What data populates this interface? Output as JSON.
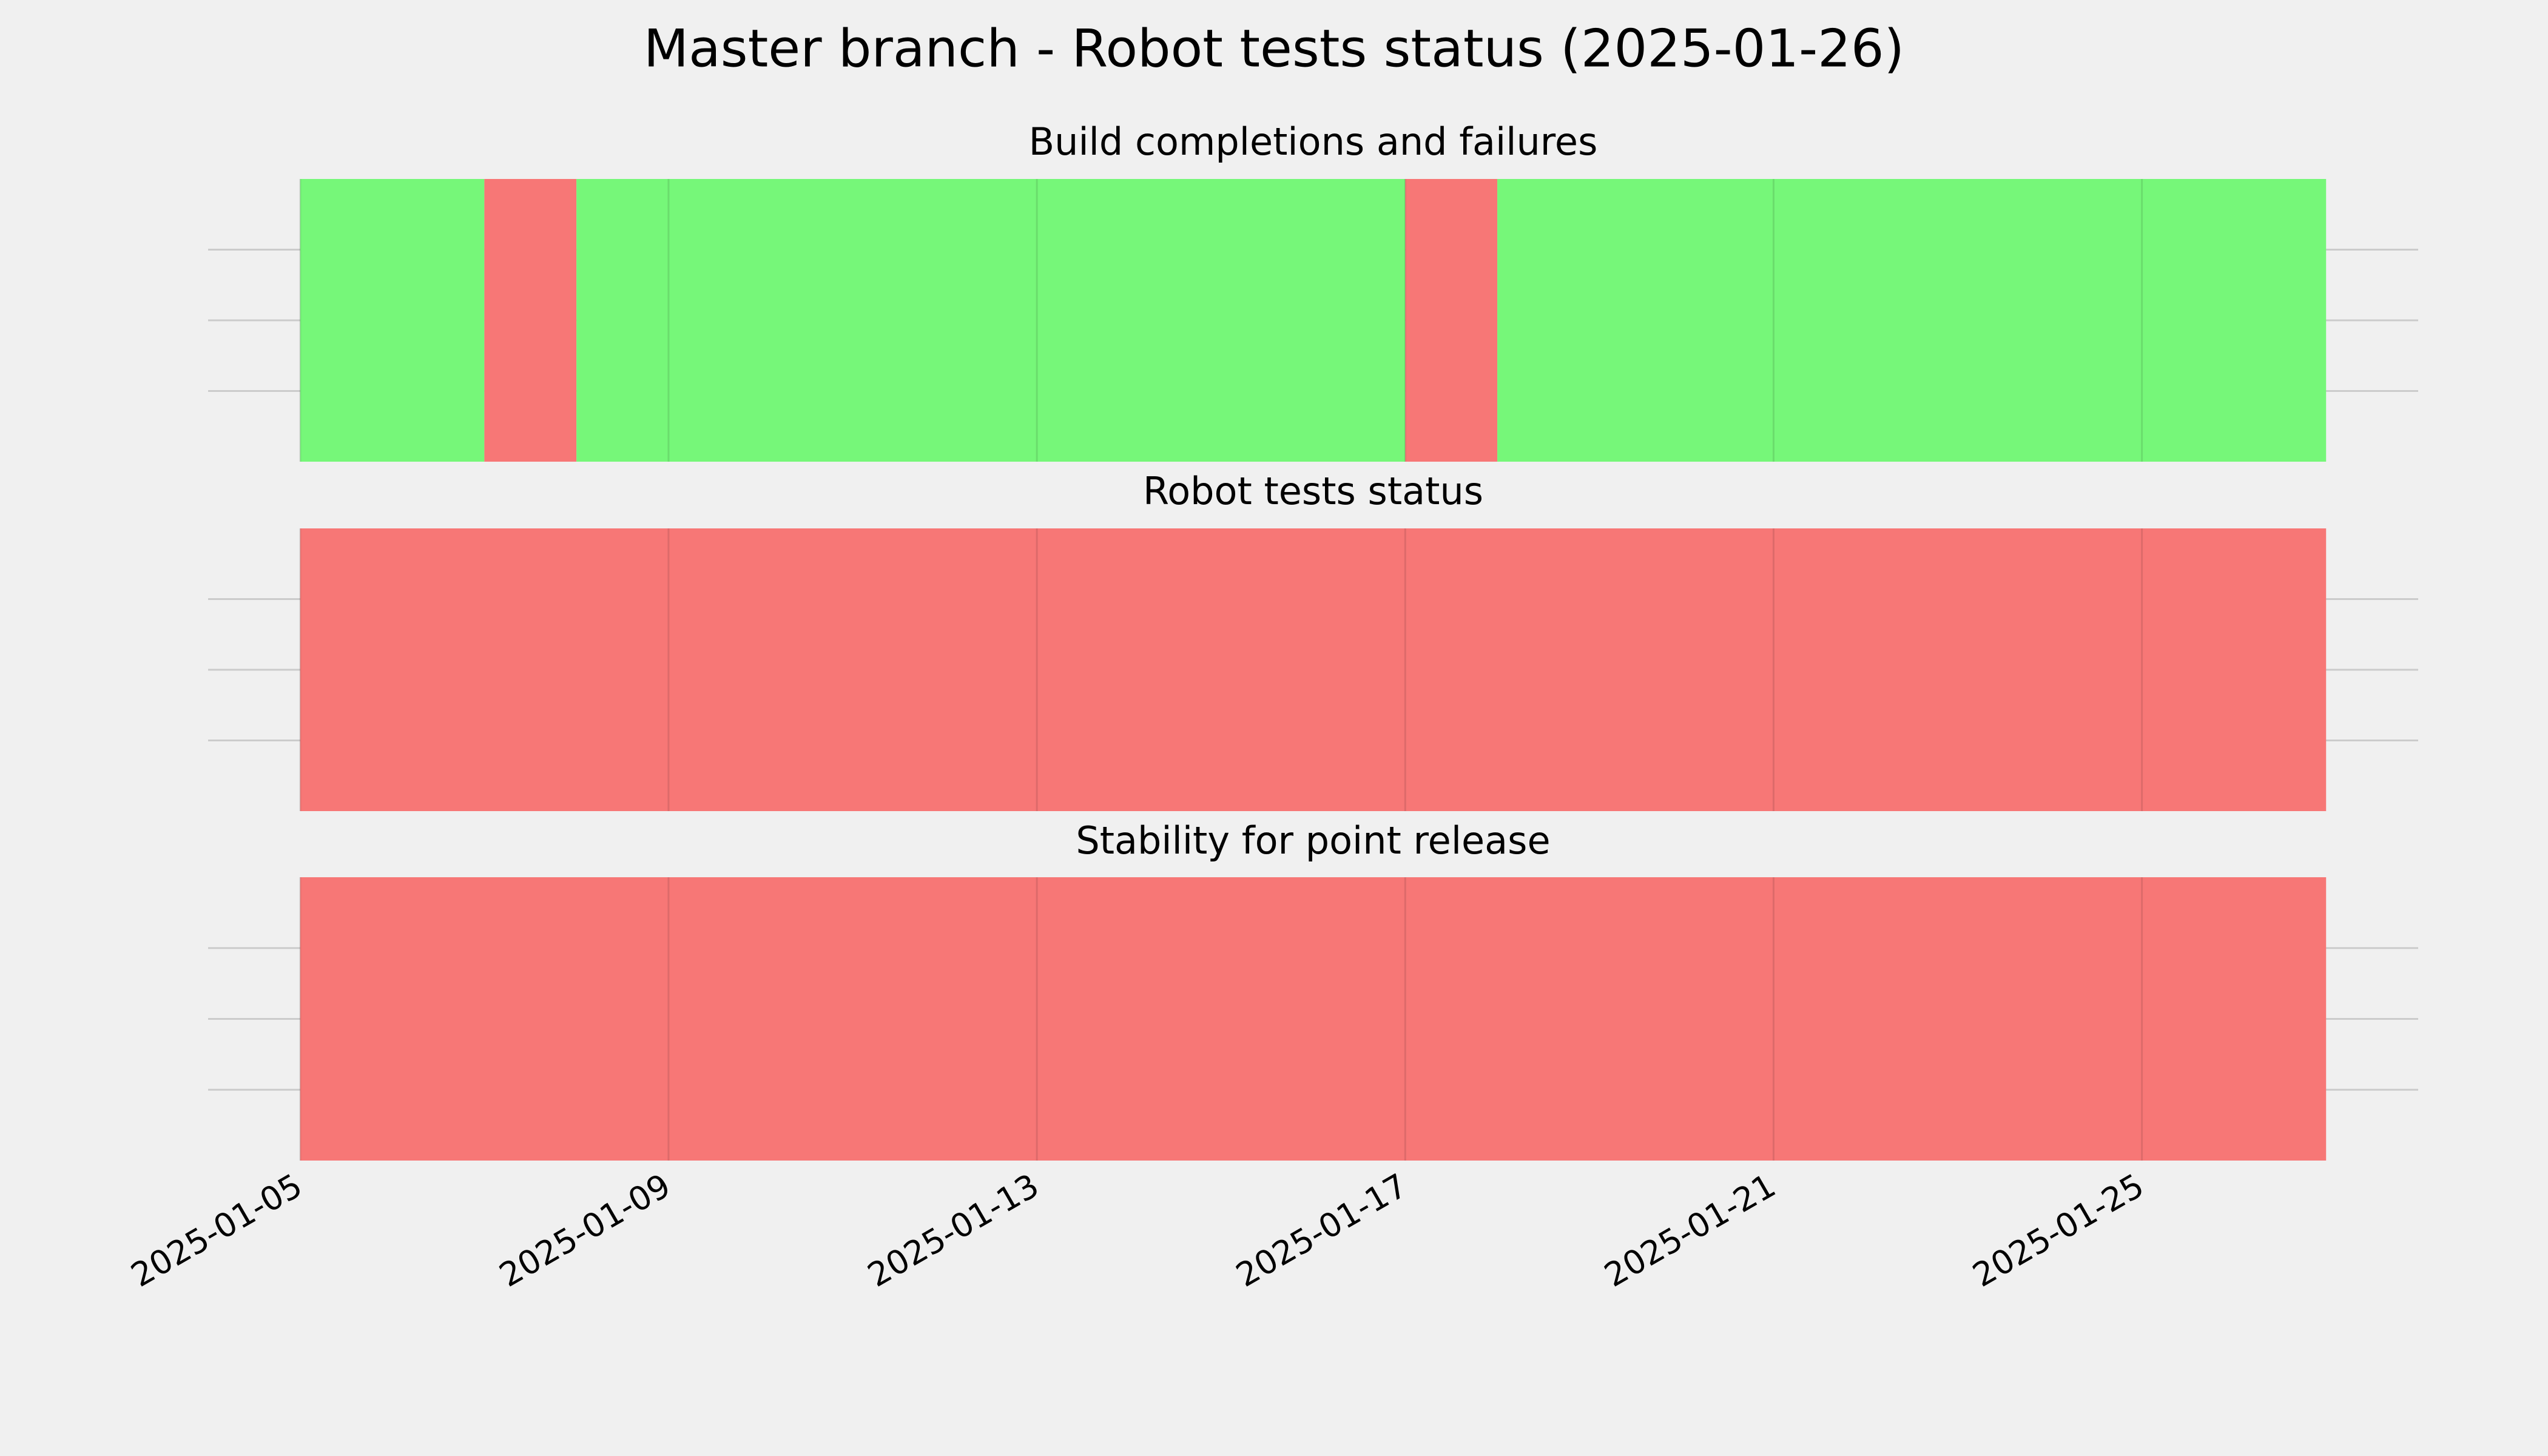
{
  "title": "Master branch - Robot tests status (2025-01-26)",
  "chart_data": [
    {
      "type": "timeline",
      "title": "Build completions and failures",
      "segments": [
        {
          "start": "2025-01-05",
          "end": "2025-01-07",
          "color": "#76f779"
        },
        {
          "start": "2025-01-07",
          "end": "2025-01-08",
          "color": "#f77776"
        },
        {
          "start": "2025-01-08",
          "end": "2025-01-17",
          "color": "#76f779"
        },
        {
          "start": "2025-01-17",
          "end": "2025-01-18",
          "color": "#f77776"
        },
        {
          "start": "2025-01-18",
          "end": "2025-01-27",
          "color": "#76f779"
        }
      ],
      "xlim": [
        "2025-01-04",
        "2025-01-28"
      ],
      "xticks": [
        "2025-01-05",
        "2025-01-09",
        "2025-01-13",
        "2025-01-17",
        "2025-01-21",
        "2025-01-25"
      ],
      "grid": true
    },
    {
      "type": "timeline",
      "title": "Robot tests status",
      "segments": [
        {
          "start": "2025-01-05",
          "end": "2025-01-27",
          "color": "#f77776"
        }
      ],
      "xlim": [
        "2025-01-04",
        "2025-01-28"
      ],
      "xticks": [
        "2025-01-05",
        "2025-01-09",
        "2025-01-13",
        "2025-01-17",
        "2025-01-21",
        "2025-01-25"
      ],
      "grid": true
    },
    {
      "type": "timeline",
      "title": "Stability for point release",
      "segments": [
        {
          "start": "2025-01-05",
          "end": "2025-01-27",
          "color": "#f77776"
        }
      ],
      "xlim": [
        "2025-01-04",
        "2025-01-28"
      ],
      "xticks": [
        "2025-01-05",
        "2025-01-09",
        "2025-01-13",
        "2025-01-17",
        "2025-01-21",
        "2025-01-25"
      ],
      "grid": true
    }
  ]
}
